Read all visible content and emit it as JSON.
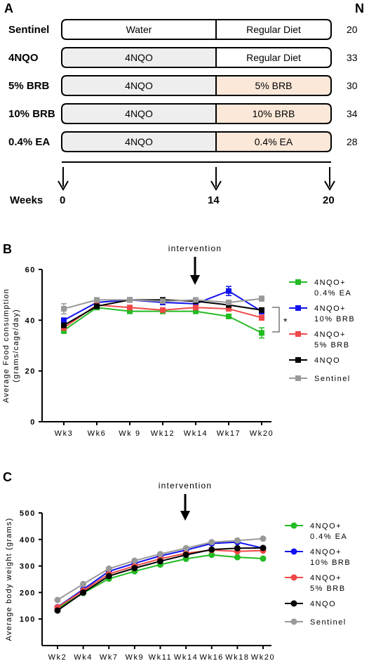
{
  "panel_a": {
    "letter": "A",
    "n_header": "N",
    "rows": [
      {
        "label": "Sentinel",
        "phase1": "Water",
        "phase2": "Regular Diet",
        "n": "20",
        "phase1_fill": "#ffffff",
        "phase2_fill": "#ffffff"
      },
      {
        "label": "4NQO",
        "phase1": "4NQO",
        "phase2": "Regular Diet",
        "n": "33",
        "phase1_fill": "#eeeeee",
        "phase2_fill": "#ffffff"
      },
      {
        "label": "5% BRB",
        "phase1": "4NQO",
        "phase2": "5% BRB",
        "n": "30",
        "phase1_fill": "#eeeeee",
        "phase2_fill": "#fce8d8"
      },
      {
        "label": "10% BRB",
        "phase1": "4NQO",
        "phase2": "10% BRB",
        "n": "34",
        "phase1_fill": "#eeeeee",
        "phase2_fill": "#fce8d8"
      },
      {
        "label": "0.4% EA",
        "phase1": "4NQO",
        "phase2": "0.4% EA",
        "n": "28",
        "phase1_fill": "#eeeeee",
        "phase2_fill": "#fce8d8"
      }
    ],
    "weeks_label": "Weeks",
    "week_ticks": [
      "0",
      "14",
      "20"
    ]
  },
  "panel_b": {
    "letter": "B",
    "annotation": "intervention",
    "significance": "*"
  },
  "panel_c": {
    "letter": "C",
    "annotation": "intervention"
  },
  "colors": {
    "ea": "#22bb22",
    "brb10": "#1111ee",
    "brb5": "#f04848",
    "nqo": "#000000",
    "sentinel": "#999999"
  },
  "chart_data": [
    {
      "type": "line",
      "panel": "B",
      "title": "",
      "xlabel": "",
      "ylabel": "Average Food consumption (grams/cage/day)",
      "ylim": [
        0,
        60
      ],
      "yticks": [
        0,
        20,
        40,
        60
      ],
      "categories": [
        "Wk3",
        "Wk6",
        "Wk 9",
        "Wk12",
        "Wk14",
        "Wk17",
        "Wk20"
      ],
      "legend_position": "right",
      "series": [
        {
          "name": "4NQO+ 0.4% EA",
          "legend_lines": [
            "4NQO+",
            "0.4% EA"
          ],
          "color": "#22bb22",
          "values": [
            36,
            45,
            43.5,
            43.5,
            43.5,
            41.5,
            35
          ],
          "errors": [
            1.2,
            0.6,
            0.6,
            0.6,
            0.6,
            0.8,
            2
          ]
        },
        {
          "name": "4NQO+ 10% BRB",
          "legend_lines": [
            "4NQO+",
            "10% BRB"
          ],
          "color": "#1111ee",
          "values": [
            40,
            47,
            48,
            47,
            46.5,
            51.5,
            43.5
          ],
          "errors": [
            0.8,
            0.6,
            0.6,
            0.6,
            0.6,
            1.8,
            1
          ]
        },
        {
          "name": "4NQO+ 5% BRB",
          "legend_lines": [
            "4NQO+",
            "5% BRB"
          ],
          "color": "#f04848",
          "values": [
            37,
            46,
            45,
            44,
            45,
            44.5,
            41
          ],
          "errors": [
            0.8,
            0.6,
            0.6,
            0.6,
            0.6,
            0.8,
            1
          ]
        },
        {
          "name": "4NQO",
          "legend_lines": [
            "4NQO"
          ],
          "color": "#000000",
          "values": [
            38,
            45.5,
            48,
            48,
            47.5,
            46,
            44
          ],
          "errors": [
            0.8,
            0.6,
            0.6,
            0.6,
            0.6,
            0.8,
            0.8
          ]
        },
        {
          "name": "Sentinel",
          "legend_lines": [
            "Sentinel"
          ],
          "color": "#999999",
          "values": [
            44.5,
            48,
            48,
            47.5,
            48,
            47,
            48.5
          ],
          "errors": [
            2,
            0.6,
            0.6,
            0.6,
            0.6,
            0.8,
            1
          ]
        }
      ]
    },
    {
      "type": "line",
      "panel": "C",
      "title": "",
      "xlabel": "",
      "ylabel": "Average body weight (grams)",
      "ylim": [
        0,
        500
      ],
      "yticks": [
        100,
        200,
        300,
        400,
        500
      ],
      "categories": [
        "Wk2",
        "Wk4",
        "Wk7",
        "Wk9",
        "Wk11",
        "Wk14",
        "Wk16",
        "Wk18",
        "Wk20"
      ],
      "legend_position": "right",
      "series": [
        {
          "name": "4NQO+ 0.4% EA",
          "legend_lines": [
            "4NQO+",
            "0.4% EA"
          ],
          "color": "#22bb22",
          "values": [
            140,
            198,
            252,
            280,
            305,
            327,
            342,
            333,
            328
          ]
        },
        {
          "name": "4NQO+ 10% BRB",
          "legend_lines": [
            "4NQO+",
            "10% BRB"
          ],
          "color": "#1111ee",
          "values": [
            145,
            212,
            280,
            310,
            338,
            360,
            385,
            390,
            367
          ]
        },
        {
          "name": "4NQO+ 5% BRB",
          "legend_lines": [
            "4NQO+",
            "5% BRB"
          ],
          "color": "#f04848",
          "values": [
            144,
            207,
            270,
            300,
            327,
            348,
            360,
            355,
            358
          ]
        },
        {
          "name": "4NQO",
          "legend_lines": [
            "4NQO"
          ],
          "color": "#000000",
          "values": [
            132,
            200,
            262,
            292,
            318,
            342,
            362,
            367,
            368
          ]
        },
        {
          "name": "Sentinel",
          "legend_lines": [
            "Sentinel"
          ],
          "color": "#999999",
          "values": [
            172,
            232,
            290,
            320,
            345,
            367,
            390,
            396,
            403
          ]
        }
      ]
    }
  ]
}
